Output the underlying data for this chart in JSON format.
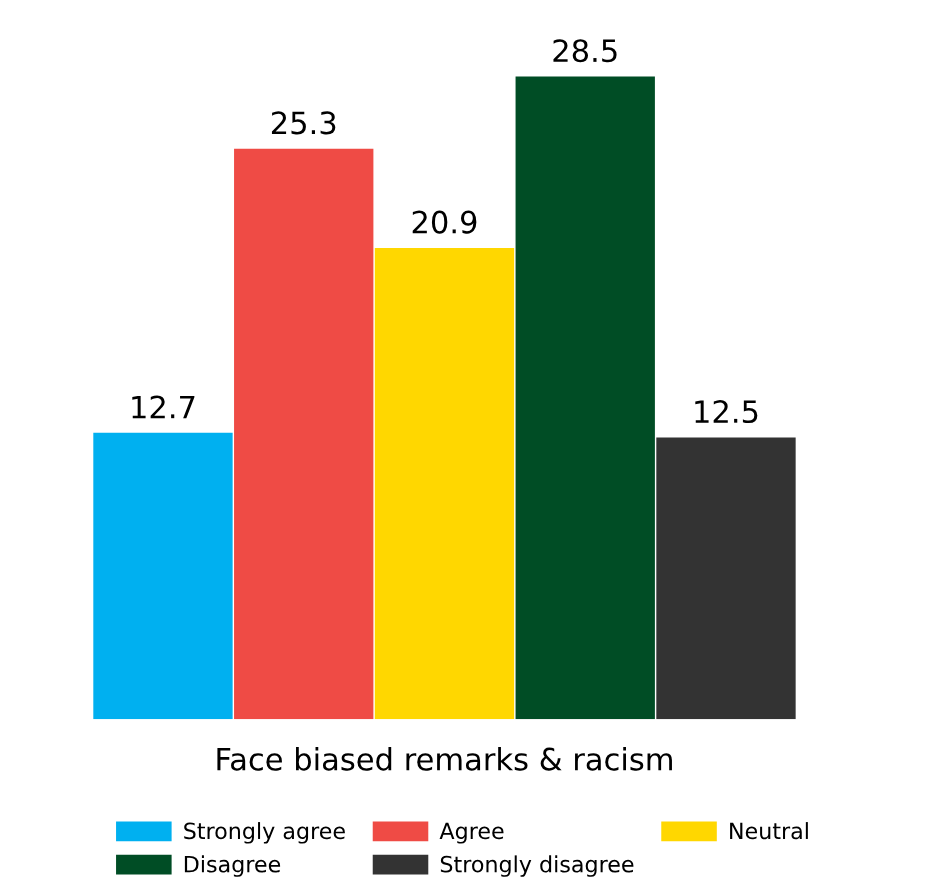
{
  "chart_data": {
    "type": "bar",
    "xlabel": "Face biased remarks & racism",
    "categories": [
      null
    ],
    "series": [
      {
        "name": "Strongly agree",
        "color": "#00b0f0",
        "values": [
          12.7
        ]
      },
      {
        "name": "Agree",
        "color": "#ef4b45",
        "values": [
          25.3
        ]
      },
      {
        "name": "Neutral",
        "color": "#ffd700",
        "values": [
          20.9
        ]
      },
      {
        "name": "Disagree",
        "color": "#004d25",
        "values": [
          28.5
        ]
      },
      {
        "name": "Strongly disagree",
        "color": "#333333",
        "values": [
          12.5
        ]
      }
    ],
    "data_labels": true,
    "legend": "bottom",
    "grid": false,
    "tick_labels": false
  }
}
